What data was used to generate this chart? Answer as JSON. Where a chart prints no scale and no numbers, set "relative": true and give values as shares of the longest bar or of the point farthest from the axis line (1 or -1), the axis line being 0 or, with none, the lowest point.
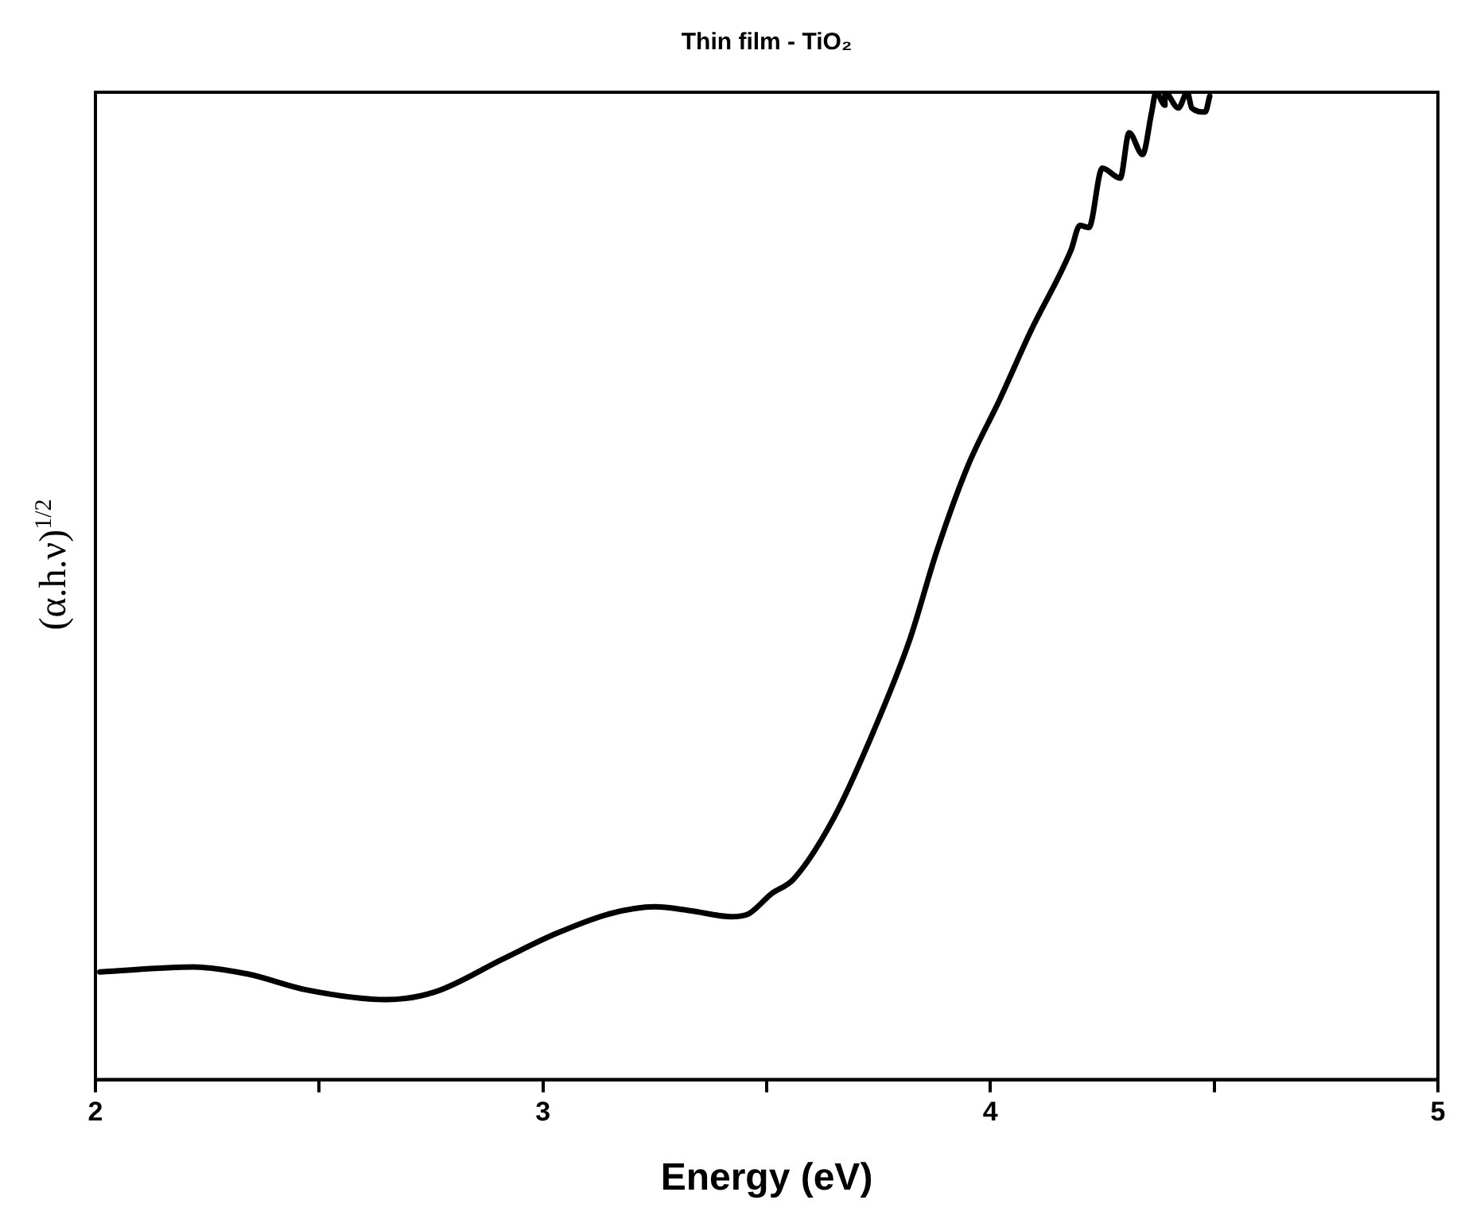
{
  "chart_data": {
    "type": "line",
    "title": "Thin film - TiO₂",
    "xlabel": "Energy (eV)",
    "ylabel": "(α.h.ν)$^{1/2}$",
    "relative": true,
    "legend": false,
    "grid": false,
    "marker": "none",
    "line_style": "solid",
    "xlim": [
      2,
      5
    ],
    "xticks": [
      2,
      {
        "value": 2.5,
        "label": null
      },
      3,
      {
        "value": 3.5,
        "label": null
      },
      4,
      {
        "value": 4.5,
        "label": null
      },
      5
    ],
    "series": [
      {
        "color": "#000000",
        "x": [
          2.01,
          2.22,
          2.34,
          2.47,
          2.65,
          2.76,
          2.91,
          3.03,
          3.15,
          3.25,
          3.33,
          3.42,
          3.46,
          3.51,
          3.56,
          3.65,
          3.74,
          3.82,
          3.88,
          3.95,
          4.02,
          4.09,
          4.18,
          4.2,
          4.22,
          4.25,
          4.29,
          4.31,
          4.34,
          4.36,
          4.37,
          4.39,
          4.39,
          4.42,
          4.44,
          4.45,
          4.48,
          4.49
        ],
        "values": [
          0.109,
          0.114,
          0.107,
          0.091,
          0.081,
          0.089,
          0.122,
          0.148,
          0.168,
          0.175,
          0.171,
          0.165,
          0.168,
          0.188,
          0.203,
          0.265,
          0.354,
          0.446,
          0.535,
          0.622,
          0.688,
          0.758,
          0.84,
          0.865,
          0.863,
          0.923,
          0.913,
          0.959,
          0.937,
          0.979,
          1,
          0.987,
          1,
          0.984,
          1,
          0.984,
          0.98,
          0.996
        ]
      }
    ]
  }
}
